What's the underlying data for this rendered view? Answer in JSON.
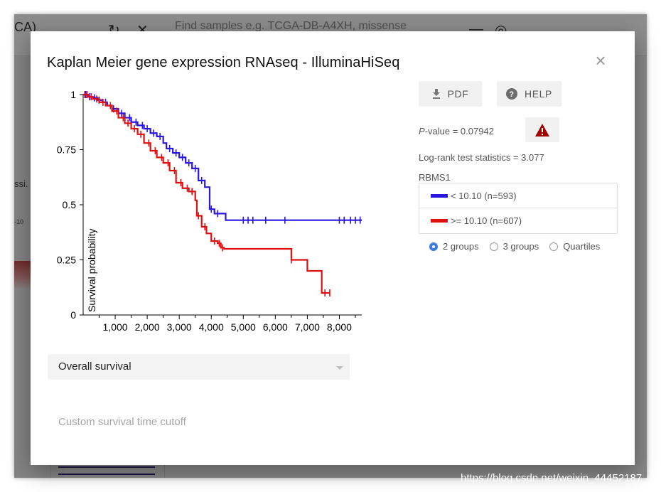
{
  "background": {
    "title": "CA)",
    "search_placeholder": "Find samples e.g. TCGA-DB-A4XH, missense",
    "side_text": "ssi.",
    "side_tick": "-10",
    "refresh_icon": "refresh-icon",
    "close_icon": "close-icon",
    "menu_icon": "menu-icon",
    "help_icon": "help-circle-icon"
  },
  "dialog": {
    "title": "Kaplan Meier gene expression RNAseq - IlluminaHiSeq",
    "close_symbol": "×",
    "pdf_label": "PDF",
    "help_label": "HELP",
    "pvalue_prefix": "P",
    "pvalue_text": "-value = 0.07942",
    "logrank_text": "Log-rank test statistics = 3.077",
    "gene": "RBMS1",
    "legend": [
      {
        "label": "< 10.10 (n=593)",
        "color": "#2a17e0"
      },
      {
        "label": ">= 10.10 (n=607)",
        "color": "#e01010"
      }
    ],
    "radios": [
      {
        "label": "2 groups",
        "selected": true
      },
      {
        "label": "3 groups",
        "selected": false
      },
      {
        "label": "Quartiles",
        "selected": false
      }
    ],
    "survival_select": "Overall survival",
    "cutoff_placeholder": "Custom survival time cutoff",
    "warn_color": "#a00000"
  },
  "chart_data": {
    "type": "line",
    "ylabel": "Survival probability",
    "xlabel": "",
    "xlim": [
      0,
      8700
    ],
    "ylim": [
      0,
      1
    ],
    "xticks": [
      "1,000",
      "2,000",
      "3,000",
      "4,000",
      "5,000",
      "6,000",
      "7,000",
      "8,000"
    ],
    "xtick_values": [
      1000,
      2000,
      3000,
      4000,
      5000,
      6000,
      7000,
      8000
    ],
    "yticks": [
      "0",
      "0.25",
      "0.5",
      "0.75",
      "1"
    ],
    "ytick_values": [
      0,
      0.25,
      0.5,
      0.75,
      1
    ],
    "series": [
      {
        "name": "< 10.10 (n=593)",
        "color": "#2a17e0",
        "x": [
          0,
          150,
          300,
          450,
          600,
          750,
          900,
          1100,
          1300,
          1500,
          1700,
          1900,
          2100,
          2300,
          2500,
          2600,
          2800,
          3000,
          3200,
          3400,
          3600,
          3800,
          3950,
          4100,
          4450,
          5000,
          5500,
          6000,
          7000,
          8000,
          8700
        ],
        "y": [
          1.0,
          0.99,
          0.985,
          0.975,
          0.965,
          0.95,
          0.935,
          0.915,
          0.895,
          0.875,
          0.86,
          0.845,
          0.825,
          0.81,
          0.78,
          0.755,
          0.735,
          0.715,
          0.69,
          0.665,
          0.61,
          0.58,
          0.48,
          0.46,
          0.43,
          0.43,
          0.43,
          0.43,
          0.43,
          0.43,
          0.43
        ],
        "censor_x": [
          80,
          200,
          350,
          500,
          700,
          950,
          1200,
          1450,
          1650,
          1850,
          2000,
          2200,
          2400,
          2700,
          2900,
          3100,
          3300,
          3500,
          3700,
          4000,
          4200,
          5000,
          5150,
          5300,
          5700,
          6300,
          8000,
          8150,
          8350,
          8500,
          8650
        ]
      },
      {
        "name": ">= 10.10 (n=607)",
        "color": "#e01010",
        "x": [
          0,
          150,
          300,
          500,
          700,
          900,
          1100,
          1300,
          1500,
          1700,
          1900,
          2100,
          2300,
          2500,
          2700,
          2900,
          3100,
          3300,
          3500,
          3550,
          3700,
          3850,
          4000,
          4200,
          4300,
          4400,
          5000,
          5500,
          6000,
          6400,
          6500,
          7000,
          7450,
          7700
        ],
        "y": [
          1.0,
          0.99,
          0.98,
          0.965,
          0.95,
          0.925,
          0.895,
          0.87,
          0.845,
          0.82,
          0.78,
          0.745,
          0.715,
          0.69,
          0.655,
          0.6,
          0.575,
          0.56,
          0.52,
          0.45,
          0.4,
          0.37,
          0.335,
          0.325,
          0.305,
          0.3,
          0.3,
          0.3,
          0.3,
          0.3,
          0.25,
          0.2,
          0.1,
          0.1
        ],
        "censor_x": [
          50,
          120,
          250,
          420,
          620,
          850,
          1050,
          1250,
          1400,
          1600,
          1800,
          2050,
          2250,
          2450,
          2650,
          2850,
          3050,
          3250,
          3400,
          3600,
          3800,
          4100,
          4250,
          4350,
          6500,
          7550,
          7700
        ]
      }
    ]
  },
  "watermark": "https://blog.csdn.net/weixin_44452187"
}
